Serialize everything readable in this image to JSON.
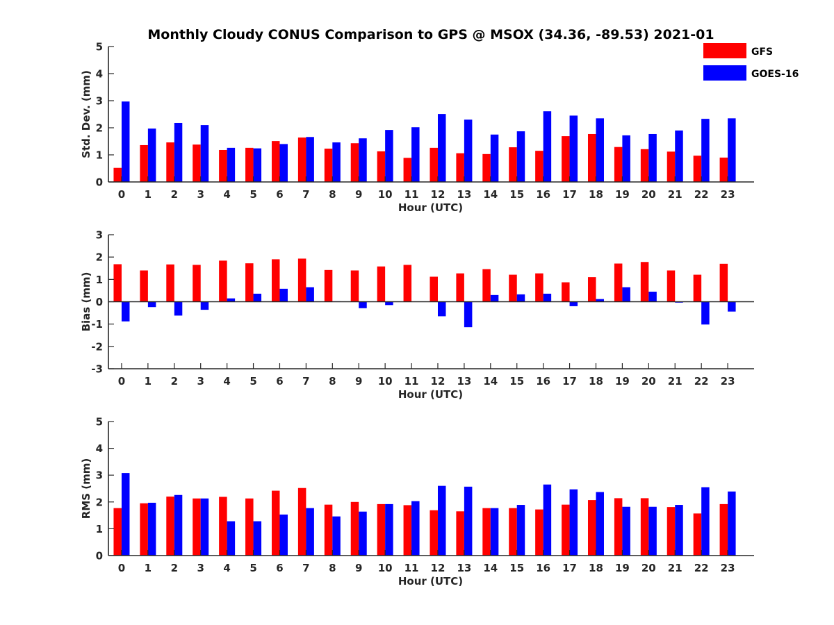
{
  "title": "Monthly Cloudy CONUS Comparison to GPS @ MSOX (34.36, -89.53) 2021-01",
  "colors": {
    "GFS": "#ff0000",
    "GOES-16": "#0000ff",
    "axis": "#262626"
  },
  "legend": {
    "placement": "top-right",
    "items": [
      "GFS",
      "GOES-16"
    ]
  },
  "chart_data": [
    {
      "type": "bar",
      "xlabel": "Hour (UTC)",
      "ylabel": "Std. Dev. (mm)",
      "ylim": [
        0,
        5
      ],
      "yticks": [
        0,
        1,
        2,
        3,
        4,
        5
      ],
      "categories": [
        "0",
        "1",
        "2",
        "3",
        "4",
        "5",
        "6",
        "7",
        "8",
        "9",
        "10",
        "11",
        "12",
        "13",
        "14",
        "15",
        "16",
        "17",
        "18",
        "19",
        "20",
        "21",
        "22",
        "23"
      ],
      "series": [
        {
          "name": "GFS",
          "values": [
            0.52,
            1.36,
            1.46,
            1.38,
            1.18,
            1.26,
            1.51,
            1.64,
            1.23,
            1.43,
            1.13,
            0.89,
            1.26,
            1.06,
            1.03,
            1.28,
            1.15,
            1.69,
            1.77,
            1.29,
            1.21,
            1.12,
            0.97,
            0.9
          ]
        },
        {
          "name": "GOES-16",
          "values": [
            2.97,
            1.97,
            2.18,
            2.1,
            1.26,
            1.24,
            1.4,
            1.66,
            1.46,
            1.61,
            1.92,
            2.02,
            2.51,
            2.3,
            1.75,
            1.87,
            2.61,
            2.45,
            2.35,
            1.72,
            1.77,
            1.9,
            2.33,
            2.35
          ]
        }
      ]
    },
    {
      "type": "bar",
      "xlabel": "Hour (UTC)",
      "ylabel": "Bias (mm)",
      "ylim": [
        -3,
        3
      ],
      "yticks": [
        -3,
        -2,
        -1,
        0,
        1,
        2,
        3
      ],
      "categories": [
        "0",
        "1",
        "2",
        "3",
        "4",
        "5",
        "6",
        "7",
        "8",
        "9",
        "10",
        "11",
        "12",
        "13",
        "14",
        "15",
        "16",
        "17",
        "18",
        "19",
        "20",
        "21",
        "22",
        "23"
      ],
      "series": [
        {
          "name": "GFS",
          "values": [
            1.68,
            1.4,
            1.67,
            1.65,
            1.84,
            1.72,
            1.9,
            1.93,
            1.42,
            1.4,
            1.58,
            1.65,
            1.12,
            1.27,
            1.46,
            1.21,
            1.27,
            0.87,
            1.1,
            1.71,
            1.78,
            1.4,
            1.21,
            1.7
          ]
        },
        {
          "name": "GOES-16",
          "values": [
            -0.88,
            -0.24,
            -0.62,
            -0.36,
            0.15,
            0.36,
            0.58,
            0.65,
            0.02,
            -0.29,
            -0.15,
            0.0,
            -0.65,
            -1.14,
            0.3,
            0.33,
            0.36,
            -0.2,
            0.12,
            0.65,
            0.45,
            -0.04,
            -1.02,
            -0.44
          ]
        }
      ]
    },
    {
      "type": "bar",
      "xlabel": "Hour (UTC)",
      "ylabel": "RMS (mm)",
      "ylim": [
        0,
        5
      ],
      "yticks": [
        0,
        1,
        2,
        3,
        4,
        5
      ],
      "categories": [
        "0",
        "1",
        "2",
        "3",
        "4",
        "5",
        "6",
        "7",
        "8",
        "9",
        "10",
        "11",
        "12",
        "13",
        "14",
        "15",
        "16",
        "17",
        "18",
        "19",
        "20",
        "21",
        "22",
        "23"
      ],
      "series": [
        {
          "name": "GFS",
          "values": [
            1.77,
            1.95,
            2.2,
            2.13,
            2.19,
            2.13,
            2.42,
            2.52,
            1.9,
            2.0,
            1.92,
            1.88,
            1.69,
            1.65,
            1.77,
            1.77,
            1.72,
            1.9,
            2.07,
            2.14,
            2.14,
            1.81,
            1.57,
            1.92
          ]
        },
        {
          "name": "GOES-16",
          "values": [
            3.08,
            1.97,
            2.26,
            2.13,
            1.28,
            1.28,
            1.53,
            1.77,
            1.46,
            1.64,
            1.92,
            2.03,
            2.6,
            2.57,
            1.77,
            1.89,
            2.65,
            2.47,
            2.37,
            1.82,
            1.82,
            1.89,
            2.55,
            2.39
          ]
        }
      ]
    }
  ]
}
